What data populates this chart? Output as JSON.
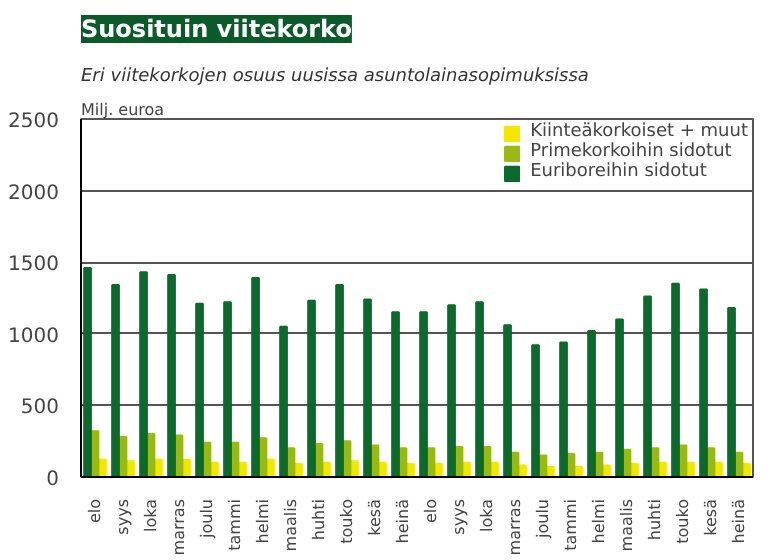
{
  "chart_data": {
    "type": "bar",
    "title": "Suosituin viitekorko",
    "subtitle": "Eri viitekorkojen osuus uusissa asuntolainasopimuksissa",
    "ylabel": "Milj. euroa",
    "categories": [
      "elo",
      "syys",
      "loka",
      "marras",
      "joulu",
      "tammi",
      "helmi",
      "maalis",
      "huhti",
      "touko",
      "kesä",
      "heinä",
      "elo",
      "syys",
      "loka",
      "marras",
      "joulu",
      "tammi",
      "helmi",
      "maalis",
      "huhti",
      "touko",
      "kesä",
      "heinä"
    ],
    "series": [
      {
        "name": "Kiinteäkorkoiset + muut",
        "color": "#f5e600",
        "values": [
          120,
          110,
          120,
          120,
          100,
          100,
          120,
          90,
          100,
          110,
          100,
          90,
          90,
          100,
          100,
          80,
          70,
          70,
          80,
          90,
          100,
          100,
          100,
          90
        ]
      },
      {
        "name": "Primekorkoihin sidotut",
        "color": "#99b914",
        "values": [
          320,
          280,
          300,
          290,
          240,
          240,
          270,
          200,
          230,
          250,
          220,
          200,
          200,
          210,
          210,
          170,
          150,
          160,
          170,
          190,
          200,
          220,
          200,
          170
        ]
      },
      {
        "name": "Euriboreihin sidotut",
        "color": "#0b6a2c",
        "values": [
          1460,
          1340,
          1430,
          1410,
          1210,
          1220,
          1390,
          1050,
          1230,
          1340,
          1240,
          1150,
          1150,
          1200,
          1220,
          1060,
          920,
          940,
          1020,
          1100,
          1260,
          1350,
          1310,
          1180
        ]
      }
    ],
    "ylim": [
      0,
      2500
    ],
    "yticks": [
      0,
      500,
      1000,
      1500,
      2000,
      2500
    ],
    "grid": "y",
    "legend": "top right"
  }
}
